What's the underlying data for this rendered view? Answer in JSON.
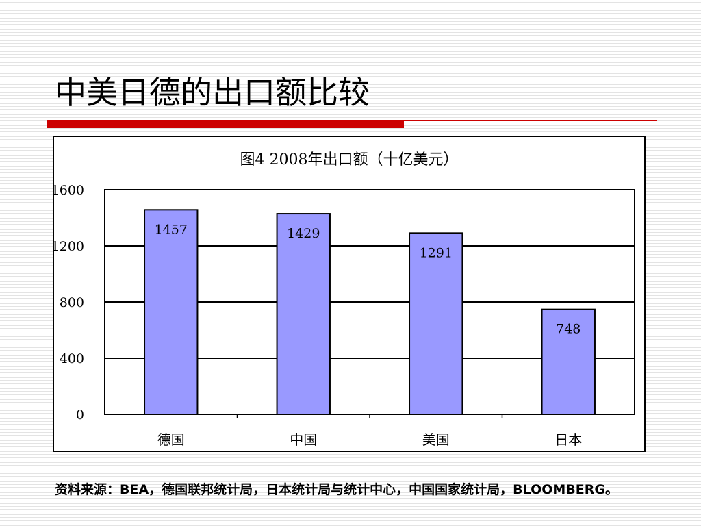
{
  "slide": {
    "title": "中美日德的出口额比较",
    "source_note": "资料来源：BEA，德国联邦统计局，日本统计局与统计中心，中国国家统计局，BLOOMBERG。"
  },
  "colors": {
    "accent_red": "#cc0000",
    "bar_fill": "#9999ff",
    "frame": "#000000"
  },
  "chart_data": {
    "type": "bar",
    "title": "图4 2008年出口额（十亿美元）",
    "categories": [
      "德国",
      "中国",
      "美国",
      "日本"
    ],
    "values": [
      1457,
      1429,
      1291,
      748
    ],
    "data_labels": [
      "1457",
      "1429",
      "1291",
      "748"
    ],
    "ylim": [
      0,
      1600
    ],
    "yticks": [
      0,
      400,
      800,
      1200,
      1600
    ],
    "xlabel": "",
    "ylabel": "",
    "grid": true,
    "legend": "none"
  }
}
